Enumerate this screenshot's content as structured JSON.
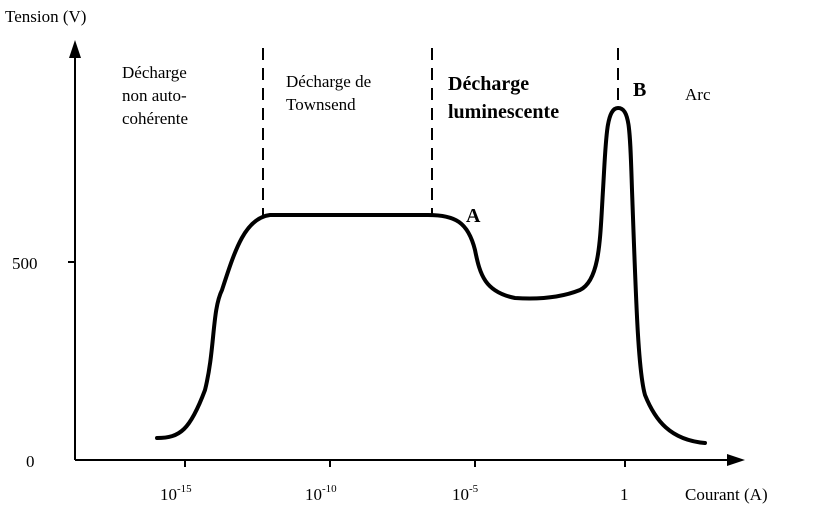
{
  "y_axis": {
    "label": "Tension (V)",
    "ticks": [
      "0",
      "500"
    ]
  },
  "x_axis": {
    "label": "Courant (A)",
    "ticks": [
      {
        "base": "10",
        "exponent": "-15"
      },
      {
        "base": "10",
        "exponent": "-10"
      },
      {
        "base": "10",
        "exponent": "-5"
      },
      {
        "base": "1"
      }
    ]
  },
  "regions": [
    {
      "lines": [
        "Décharge",
        "non auto-",
        "cohérente"
      ]
    },
    {
      "lines": [
        "Décharge de",
        "Townsend"
      ]
    },
    {
      "lines": [
        "Décharge",
        "luminescente"
      ]
    },
    {
      "lines": [
        "Arc"
      ]
    }
  ],
  "points": [
    "A",
    "B"
  ]
}
